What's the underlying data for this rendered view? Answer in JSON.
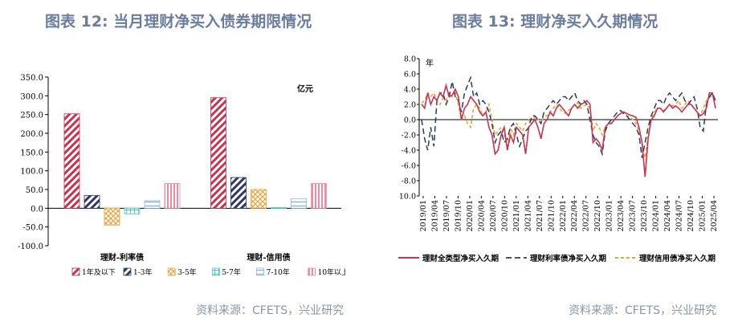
{
  "left": {
    "title": "图表 12: 当月理财净买入债券期限情况",
    "source": "资料来源：CFETS，兴业研究"
  },
  "right": {
    "title": "图表 13: 理财净买入久期情况",
    "source": "资料来源：CFETS，兴业研究"
  },
  "colors": {
    "title": "#6b7d9c",
    "red": "#c8344e",
    "navy": "#2e3a63",
    "orange": "#e6a33c",
    "teal": "#5cc9c7",
    "lightblue": "#8fb8dc",
    "pink": "#f08aa0"
  },
  "chart_data": [
    {
      "type": "bar",
      "unit_label": "亿元",
      "categories": [
        "理财-利率债",
        "理财-信用债"
      ],
      "ylim": [
        -100,
        350
      ],
      "yticks": [
        "-100.0",
        "-50.0",
        "0.0",
        "50.0",
        "100.0",
        "150.0",
        "200.0",
        "250.0",
        "300.0",
        "350.0"
      ],
      "legend_position": "bottom",
      "series": [
        {
          "name": "1年及以下",
          "values": [
            252,
            295
          ]
        },
        {
          "name": "1-3年",
          "values": [
            34,
            82
          ]
        },
        {
          "name": "3-5年",
          "values": [
            -45,
            50
          ]
        },
        {
          "name": "5-7年",
          "values": [
            -15,
            2
          ]
        },
        {
          "name": "7-10年",
          "values": [
            20,
            25
          ]
        },
        {
          "name": "10年以上",
          "values": [
            66,
            66
          ]
        }
      ]
    },
    {
      "type": "line",
      "unit_label": "年",
      "ylim": [
        -10,
        8
      ],
      "yticks": [
        "-10.0",
        "-8.0",
        "-6.0",
        "-4.0",
        "-2.0",
        "0.0",
        "2.0",
        "4.0",
        "6.0",
        "8.0"
      ],
      "x_ticks": [
        "2019/01",
        "2019/04",
        "2019/07",
        "2019/10",
        "2020/01",
        "2020/04",
        "2020/07",
        "2020/10",
        "2021/01",
        "2021/04",
        "2021/07",
        "2021/10",
        "2022/01",
        "2022/04",
        "2022/07",
        "2022/10",
        "2023/01",
        "2023/04",
        "2023/07",
        "2023/10",
        "2024/01",
        "2024/04",
        "2024/07",
        "2024/10",
        "2025/01",
        "2025/04"
      ],
      "legend_position": "bottom",
      "series": [
        {
          "name": "理财全类型净买入久期",
          "values": [
            2.0,
            1.5,
            3.5,
            2.0,
            3.0,
            2.5,
            3.5,
            3.0,
            4.5,
            3.0,
            3.2,
            4.0,
            3.0,
            0.0,
            1.5,
            2.0,
            3.0,
            2.5,
            2.0,
            1.0,
            0.5,
            1.0,
            -1.0,
            -2.0,
            -4.5,
            -4.0,
            -2.0,
            -1.0,
            -4.0,
            -2.0,
            -3.0,
            -1.0,
            -1.5,
            -2.0,
            -4.5,
            -1.0,
            -0.5,
            0.0,
            -1.0,
            -2.5,
            -0.5,
            0.0,
            1.0,
            0.5,
            1.5,
            2.0,
            1.5,
            1.0,
            0.5,
            1.5,
            2.0,
            1.5,
            2.0,
            2.2,
            2.5,
            2.0,
            -3.0,
            -2.5,
            -3.0,
            -4.0,
            -1.0,
            -0.5,
            -0.5,
            0.0,
            0.5,
            0.8,
            1.0,
            0.8,
            0.6,
            0.5,
            0.3,
            -1.0,
            -3.0,
            -7.5,
            -2.5,
            0.0,
            0.5,
            1.5,
            1.5,
            1.0,
            1.5,
            2.0,
            1.5,
            1.8,
            1.5,
            1.0,
            1.5,
            2.0,
            2.0,
            1.5,
            1.0,
            0.5,
            0.8,
            1.5,
            3.5,
            3.5,
            1.5
          ]
        },
        {
          "name": "理财利率债净买入久期",
          "values": [
            0.0,
            -2.5,
            -4.0,
            -1.0,
            -3.5,
            2.5,
            3.5,
            3.5,
            2.0,
            3.0,
            5.0,
            3.0,
            2.5,
            1.0,
            3.5,
            4.5,
            5.5,
            3.0,
            3.5,
            2.0,
            2.5,
            2.0,
            1.0,
            -0.5,
            -3.0,
            -2.0,
            -1.5,
            -3.0,
            -2.5,
            -1.0,
            -0.5,
            -2.0,
            -3.5,
            -2.5,
            -1.5,
            -1.0,
            0.5,
            0.5,
            0.0,
            -0.5,
            1.0,
            1.5,
            2.0,
            2.5,
            2.0,
            2.5,
            3.0,
            3.0,
            2.5,
            3.0,
            3.5,
            2.5,
            2.0,
            2.5,
            2.0,
            0.0,
            -2.0,
            -3.0,
            -3.5,
            -4.5,
            -1.5,
            -0.5,
            0.0,
            0.5,
            1.0,
            1.2,
            0.8,
            0.5,
            0.0,
            -0.5,
            -1.0,
            -2.0,
            -5.0,
            -3.0,
            -1.0,
            0.5,
            1.5,
            2.5,
            2.5,
            2.0,
            3.0,
            3.5,
            3.0,
            2.5,
            3.0,
            3.5,
            2.5,
            2.0,
            2.5,
            3.0,
            1.5,
            -1.0,
            -1.5,
            2.0,
            3.0,
            3.5,
            2.5
          ]
        },
        {
          "name": "理财信用债净买入久期",
          "values": [
            2.2,
            2.5,
            3.5,
            3.0,
            3.5,
            2.5,
            2.0,
            2.8,
            2.5,
            3.5,
            3.0,
            3.5,
            2.0,
            0.0,
            0.5,
            -0.5,
            -1.0,
            1.5,
            2.0,
            1.5,
            0.5,
            1.0,
            2.0,
            0.0,
            -2.0,
            -1.5,
            -1.0,
            -2.0,
            -3.5,
            -1.0,
            -2.0,
            -0.5,
            -1.0,
            -1.5,
            -0.5,
            0.0,
            -0.5,
            0.5,
            0.0,
            -0.5,
            0.5,
            0.5,
            1.0,
            1.5,
            2.0,
            1.5,
            1.0,
            0.8,
            1.2,
            1.5,
            2.0,
            2.2,
            1.5,
            1.8,
            2.0,
            1.5,
            -1.5,
            -0.5,
            -1.0,
            -2.0,
            -1.0,
            -0.5,
            -0.5,
            0.0,
            0.5,
            0.8,
            1.0,
            0.5,
            0.3,
            0.0,
            -0.5,
            -1.5,
            -3.0,
            -5.0,
            -2.0,
            0.0,
            1.0,
            1.5,
            1.5,
            1.2,
            1.5,
            2.0,
            1.8,
            2.0,
            2.5,
            1.5,
            2.0,
            2.5,
            2.0,
            1.5,
            1.0,
            0.5,
            1.5,
            2.5,
            3.0,
            3.0,
            2.5
          ]
        }
      ]
    }
  ]
}
